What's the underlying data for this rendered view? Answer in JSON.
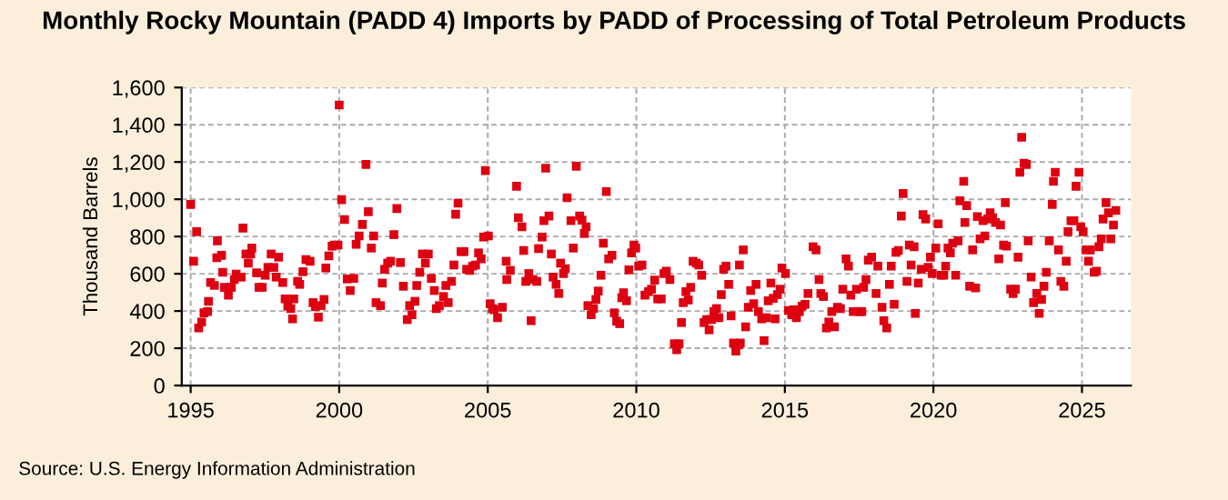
{
  "chart_data": {
    "type": "scatter",
    "title": "Monthly Rocky Mountain (PADD 4) Imports by PADD of Processing of Total Petroleum Products",
    "ylabel": "Thousand Barrels",
    "annotations": [
      "Source: U.S. Energy Information Administration"
    ],
    "x": [
      1995.0,
      1995.1,
      1995.2,
      1995.27,
      1995.37,
      1995.45,
      1995.57,
      1995.6,
      1995.67,
      1995.8,
      1995.88,
      1995.9,
      1996.04,
      1996.08,
      1996.14,
      1996.27,
      1996.37,
      1996.47,
      1996.53,
      1996.7,
      1996.76,
      1996.86,
      1996.94,
      1997.02,
      1997.06,
      1997.22,
      1997.3,
      1997.41,
      1997.51,
      1997.6,
      1997.71,
      1997.8,
      1997.88,
      1997.96,
      1998.1,
      1998.18,
      1998.27,
      1998.37,
      1998.43,
      1998.47,
      1998.6,
      1998.67,
      1998.78,
      1998.88,
      1999.02,
      1999.12,
      1999.2,
      1999.3,
      1999.39,
      1999.49,
      1999.55,
      1999.65,
      1999.76,
      1999.84,
      1999.96,
      2000.0,
      2000.08,
      2000.18,
      2000.27,
      2000.37,
      2000.49,
      2000.57,
      2000.67,
      2000.78,
      2000.9,
      2000.98,
      2001.08,
      2001.16,
      2001.24,
      2001.39,
      2001.45,
      2001.53,
      2001.63,
      2001.73,
      2001.84,
      2001.94,
      2002.06,
      2002.16,
      2002.29,
      2002.37,
      2002.45,
      2002.55,
      2002.61,
      2002.71,
      2002.8,
      2002.9,
      2003.0,
      2003.1,
      2003.2,
      2003.27,
      2003.37,
      2003.51,
      2003.59,
      2003.67,
      2003.78,
      2003.86,
      2003.92,
      2004.0,
      2004.1,
      2004.2,
      2004.29,
      2004.39,
      2004.49,
      2004.59,
      2004.69,
      2004.78,
      2004.86,
      2004.92,
      2005.02,
      2005.08,
      2005.16,
      2005.21,
      2005.33,
      2005.49,
      2005.62,
      2005.64,
      2005.76,
      2005.97,
      2006.03,
      2006.15,
      2006.21,
      2006.28,
      2006.38,
      2006.46,
      2006.52,
      2006.65,
      2006.71,
      2006.83,
      2006.89,
      2006.95,
      2007.06,
      2007.14,
      2007.2,
      2007.3,
      2007.39,
      2007.45,
      2007.55,
      2007.61,
      2007.67,
      2007.8,
      2007.88,
      2007.98,
      2008.09,
      2008.17,
      2008.25,
      2008.31,
      2008.37,
      2008.48,
      2008.56,
      2008.64,
      2008.72,
      2008.81,
      2008.89,
      2008.99,
      2009.07,
      2009.18,
      2009.26,
      2009.34,
      2009.44,
      2009.51,
      2009.57,
      2009.67,
      2009.75,
      2009.84,
      2009.92,
      2009.98,
      2010.08,
      2010.19,
      2010.29,
      2010.41,
      2010.51,
      2010.62,
      2010.72,
      2010.84,
      2010.93,
      2011.01,
      2011.13,
      2011.28,
      2011.36,
      2011.44,
      2011.52,
      2011.58,
      2011.67,
      2011.75,
      2011.83,
      2011.91,
      2012.02,
      2012.1,
      2012.2,
      2012.28,
      2012.37,
      2012.45,
      2012.53,
      2012.61,
      2012.7,
      2012.78,
      2012.86,
      2012.94,
      2013.02,
      2013.11,
      2013.19,
      2013.27,
      2013.35,
      2013.44,
      2013.47,
      2013.5,
      2013.6,
      2013.68,
      2013.77,
      2013.85,
      2013.95,
      2014.03,
      2014.11,
      2014.22,
      2014.3,
      2014.38,
      2014.44,
      2014.53,
      2014.61,
      2014.67,
      2014.75,
      2014.84,
      2014.9,
      2015.02,
      2015.12,
      2015.23,
      2015.31,
      2015.39,
      2015.49,
      2015.58,
      2015.68,
      2015.78,
      2015.95,
      2016.05,
      2016.15,
      2016.21,
      2016.3,
      2016.4,
      2016.48,
      2016.58,
      2016.67,
      2016.77,
      2016.87,
      2016.95,
      2017.06,
      2017.14,
      2017.22,
      2017.3,
      2017.41,
      2017.51,
      2017.59,
      2017.65,
      2017.73,
      2017.81,
      2017.92,
      2018.07,
      2018.13,
      2018.27,
      2018.33,
      2018.43,
      2018.52,
      2018.58,
      2018.68,
      2018.74,
      2018.82,
      2018.92,
      2018.98,
      2019.11,
      2019.19,
      2019.25,
      2019.35,
      2019.39,
      2019.49,
      2019.59,
      2019.65,
      2019.74,
      2019.82,
      2019.9,
      2019.96,
      2020.08,
      2020.16,
      2020.26,
      2020.35,
      2020.41,
      2020.49,
      2020.57,
      2020.65,
      2020.75,
      2020.83,
      2020.89,
      2021.02,
      2021.06,
      2021.12,
      2021.22,
      2021.32,
      2021.42,
      2021.48,
      2021.57,
      2021.67,
      2021.73,
      2021.83,
      2021.91,
      2021.99,
      2022.09,
      2022.2,
      2022.26,
      2022.36,
      2022.42,
      2022.46,
      2022.6,
      2022.68,
      2022.76,
      2022.85,
      2022.91,
      2022.97,
      2023.05,
      2023.13,
      2023.19,
      2023.29,
      2023.37,
      2023.48,
      2023.56,
      2023.64,
      2023.72,
      2023.8,
      2023.9,
      2024.0,
      2024.04,
      2024.1,
      2024.21,
      2024.29,
      2024.39,
      2024.47,
      2024.53,
      2024.63,
      2024.73,
      2024.8,
      2024.9,
      2024.96,
      2025.04,
      2025.14,
      2025.22,
      2025.28,
      2025.41,
      2025.49,
      2025.57,
      2025.65,
      2025.71,
      2025.81,
      2025.89,
      2025.97,
      2026.06,
      2026.14
    ],
    "values": [
      972,
      667,
      826,
      309,
      341,
      390,
      397,
      452,
      553,
      537,
      686,
      777,
      699,
      608,
      527,
      485,
      527,
      569,
      598,
      582,
      845,
      706,
      657,
      706,
      738,
      605,
      527,
      527,
      592,
      634,
      706,
      634,
      582,
      689,
      553,
      465,
      426,
      413,
      358,
      465,
      559,
      543,
      611,
      676,
      667,
      445,
      423,
      367,
      429,
      462,
      631,
      696,
      748,
      754,
      754,
      1506,
      998,
      891,
      572,
      510,
      575,
      758,
      803,
      865,
      1187,
      933,
      738,
      803,
      445,
      429,
      550,
      624,
      657,
      667,
      810,
      950,
      660,
      533,
      354,
      429,
      380,
      452,
      537,
      608,
      706,
      657,
      706,
      575,
      510,
      413,
      429,
      478,
      537,
      445,
      559,
      647,
      920,
      979,
      719,
      719,
      624,
      618,
      641,
      647,
      712,
      680,
      797,
      1154,
      803,
      439,
      413,
      407,
      364,
      420,
      667,
      569,
      618,
      1070,
      901,
      852,
      725,
      559,
      601,
      348,
      569,
      559,
      735,
      797,
      885,
      1167,
      910,
      706,
      582,
      543,
      494,
      657,
      601,
      627,
      1008,
      885,
      738,
      1177,
      910,
      888,
      816,
      852,
      429,
      380,
      413,
      462,
      507,
      592,
      764,
      1041,
      680,
      699,
      390,
      345,
      332,
      471,
      498,
      455,
      621,
      712,
      754,
      738,
      641,
      647,
      485,
      504,
      517,
      566,
      465,
      465,
      601,
      614,
      569,
      224,
      192,
      224,
      338,
      445,
      504,
      459,
      527,
      667,
      657,
      647,
      592,
      338,
      354,
      299,
      354,
      397,
      413,
      364,
      488,
      624,
      641,
      543,
      374,
      228,
      185,
      218,
      647,
      228,
      728,
      315,
      420,
      510,
      439,
      543,
      397,
      358,
      241,
      364,
      455,
      550,
      468,
      358,
      488,
      517,
      631,
      601,
      403,
      380,
      407,
      364,
      397,
      426,
      436,
      494,
      745,
      728,
      569,
      494,
      478,
      309,
      341,
      397,
      315,
      420,
      413,
      517,
      680,
      641,
      485,
      397,
      517,
      397,
      397,
      527,
      569,
      673,
      689,
      494,
      641,
      420,
      348,
      309,
      543,
      641,
      436,
      715,
      725,
      910,
      1031,
      559,
      754,
      647,
      745,
      387,
      550,
      624,
      917,
      894,
      634,
      689,
      601,
      738,
      868,
      592,
      592,
      641,
      738,
      712,
      764,
      592,
      777,
      992,
      1096,
      875,
      966,
      533,
      728,
      524,
      907,
      787,
      885,
      803,
      894,
      927,
      901,
      875,
      680,
      862,
      754,
      982,
      748,
      517,
      494,
      517,
      689,
      1145,
      1333,
      1193,
      1187,
      777,
      582,
      445,
      494,
      387,
      462,
      533,
      608,
      777,
      972,
      1096,
      1145,
      728,
      559,
      533,
      667,
      826,
      885,
      885,
      1070,
      1145,
      852,
      826,
      728,
      667,
      728,
      608,
      614,
      745,
      787,
      894,
      982,
      927,
      787,
      862,
      940
    ],
    "color": "#dd0011",
    "marker": "square",
    "xlim": [
      1994.7,
      2026.65
    ],
    "xticks": [
      1995,
      2000,
      2005,
      2010,
      2015,
      2020,
      2025
    ],
    "ylim": [
      0,
      1600
    ],
    "yticks": [
      0,
      200,
      400,
      600,
      800,
      {
        "value": 1000,
        "label": "1,000"
      },
      {
        "value": 1200,
        "label": "1,200"
      },
      {
        "value": 1400,
        "label": "1,400"
      },
      {
        "value": 1600,
        "label": "1,600"
      }
    ],
    "grid": true
  }
}
